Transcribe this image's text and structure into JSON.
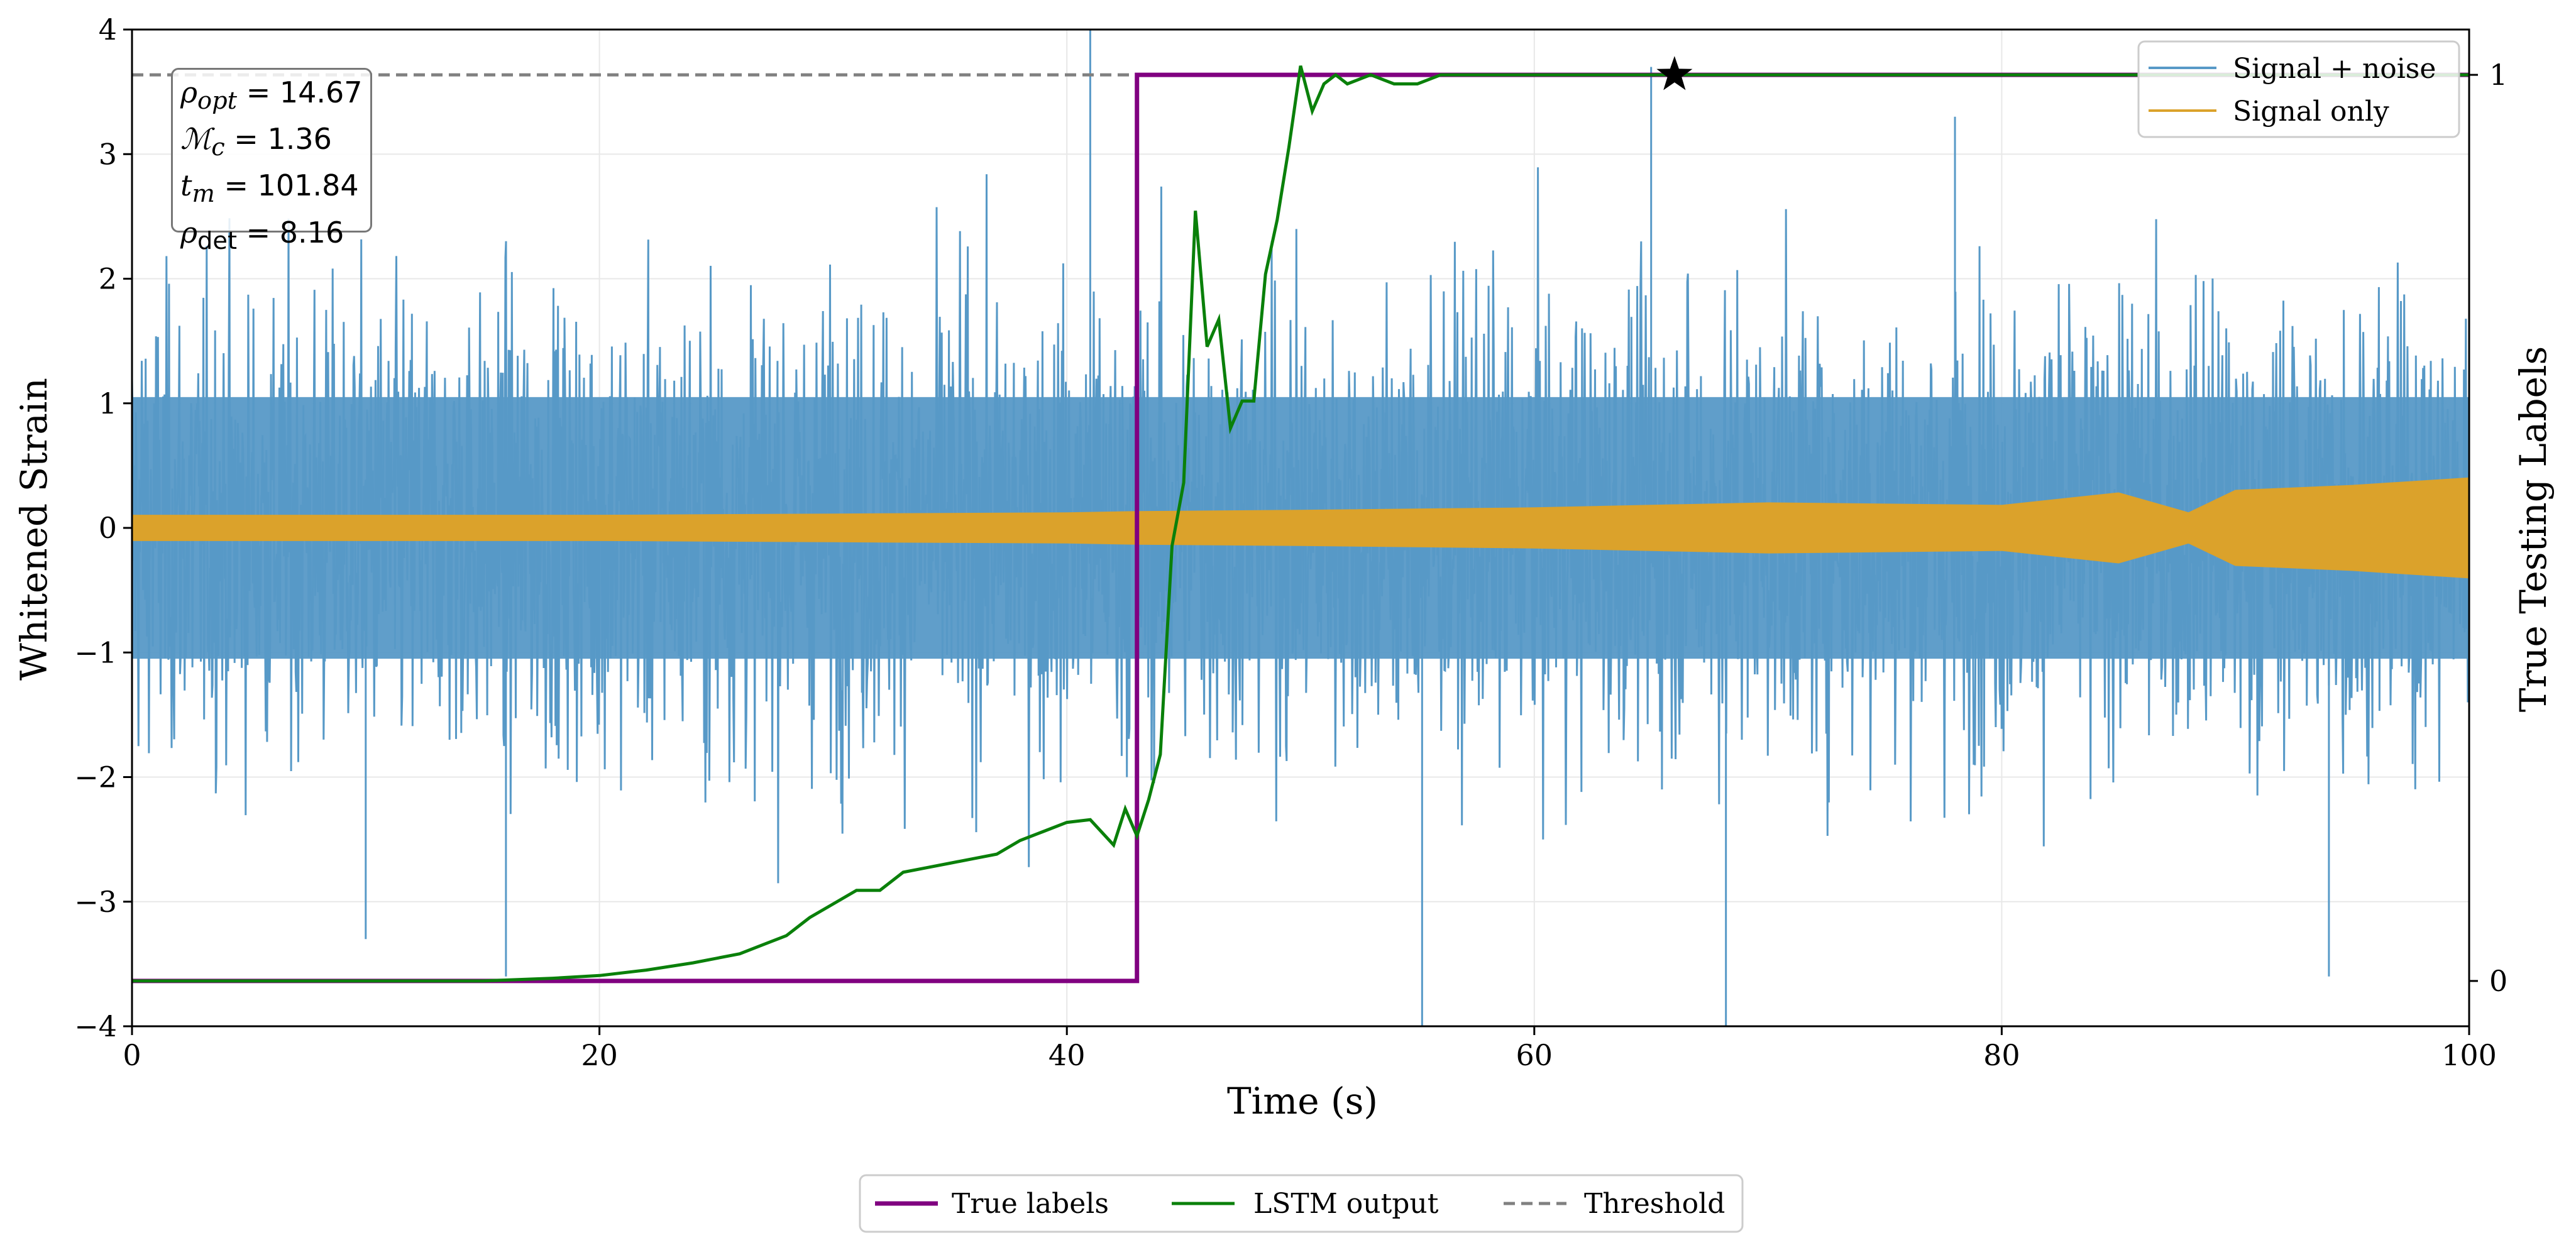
{
  "chart_data": {
    "type": "line",
    "title": "",
    "xlabel": "Time (s)",
    "ylabel": "Whitened Strain",
    "y2label": "True Testing Labels",
    "xlim": [
      0,
      100
    ],
    "ylim": [
      -4,
      4
    ],
    "y2lim": [
      -0.05,
      1.05
    ],
    "xticks": [
      "0",
      "20",
      "40",
      "60",
      "80",
      "100"
    ],
    "yticks": [
      "−4",
      "−3",
      "−2",
      "−1",
      "0",
      "1",
      "2",
      "3",
      "4"
    ],
    "y2ticks": [
      "0",
      "1"
    ],
    "grid": true,
    "threshold": 1.0,
    "detection_marker": {
      "x": 66.0,
      "y": 1.0
    },
    "annotation": {
      "rho_opt_label": "ρ",
      "rho_opt_sub": "opt",
      "rho_opt_value": "= 14.67",
      "mc_label": "ℳ",
      "mc_sub": "c",
      "mc_value": "= 1.36",
      "tm_label": "t",
      "tm_sub": "m",
      "tm_value": "= 101.84",
      "rho_det_label": "ρ",
      "rho_det_sub": "det",
      "rho_det_value": "= 8.16"
    },
    "series": [
      {
        "name": "Signal + noise",
        "axis": "left",
        "style": "noise",
        "color": "#5799c7",
        "description_stats": {
          "core_amplitude": 1.6,
          "max": 4.0,
          "min": -4.0
        }
      },
      {
        "name": "Signal only",
        "axis": "left",
        "style": "envelope",
        "color": "#dba22b",
        "envelope": {
          "x": [
            0,
            10,
            20,
            30,
            40,
            43,
            50,
            60,
            70,
            80,
            85,
            88,
            90,
            95,
            100
          ],
          "amp": [
            0.1,
            0.1,
            0.1,
            0.11,
            0.12,
            0.13,
            0.14,
            0.16,
            0.2,
            0.18,
            0.28,
            0.12,
            0.3,
            0.34,
            0.4
          ]
        }
      },
      {
        "name": "True labels",
        "axis": "right",
        "color": "#800080",
        "x": [
          0,
          43,
          43,
          100
        ],
        "y": [
          0,
          0,
          1,
          1
        ]
      },
      {
        "name": "LSTM output",
        "axis": "right",
        "color": "#0a800a",
        "x": [
          0,
          15,
          18,
          20,
          22,
          24,
          25,
          26,
          27,
          28,
          29,
          30,
          31,
          32,
          33,
          34,
          35,
          36,
          37,
          38,
          39,
          40,
          41,
          42,
          42.5,
          43,
          43.5,
          44,
          44.5,
          45,
          45.5,
          46,
          46.5,
          47,
          47.5,
          48,
          48.5,
          49,
          49.5,
          50,
          50.5,
          51,
          51.5,
          52,
          53,
          54,
          55,
          56,
          57,
          58,
          60,
          62,
          64,
          70,
          100
        ],
        "y": [
          0,
          0,
          0.003,
          0.006,
          0.012,
          0.02,
          0.025,
          0.03,
          0.04,
          0.05,
          0.07,
          0.085,
          0.1,
          0.1,
          0.12,
          0.125,
          0.13,
          0.135,
          0.14,
          0.155,
          0.165,
          0.175,
          0.178,
          0.15,
          0.19,
          0.16,
          0.2,
          0.25,
          0.48,
          0.55,
          0.85,
          0.7,
          0.73,
          0.61,
          0.64,
          0.64,
          0.78,
          0.84,
          0.92,
          1.01,
          0.96,
          0.99,
          1.0,
          0.99,
          1.0,
          0.99,
          0.99,
          1.0,
          1.0,
          1.0,
          1.0,
          1.0,
          1.0,
          1.0,
          1.0
        ]
      }
    ],
    "legend_upper": {
      "items": [
        "Signal + noise",
        "Signal only"
      ],
      "position": "top-right"
    },
    "legend_lower": {
      "items": [
        "True labels",
        "LSTM output",
        "Threshold"
      ],
      "position": "bottom-center"
    }
  }
}
